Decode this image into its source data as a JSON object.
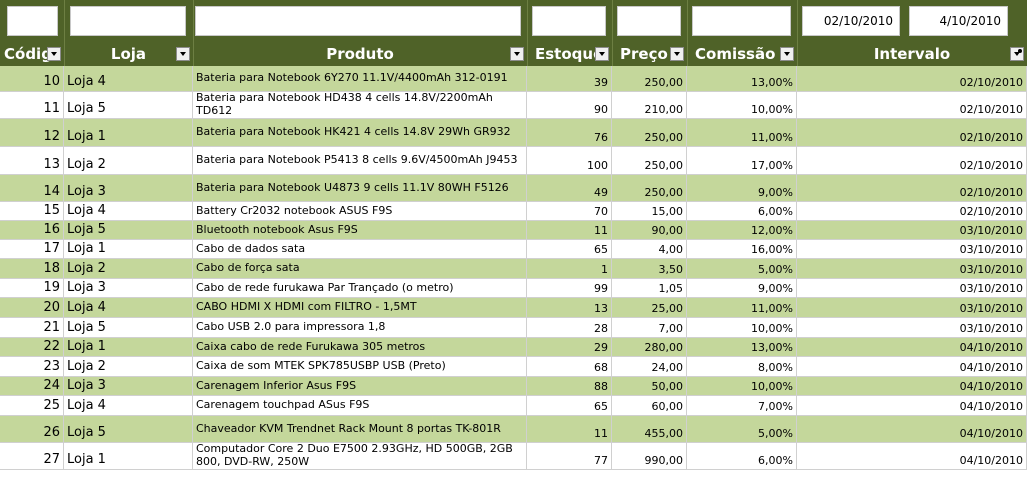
{
  "header": {
    "columns": [
      {
        "title": "Códig"
      },
      {
        "title": "Loja"
      },
      {
        "title": "Produto"
      },
      {
        "title": "Estoque"
      },
      {
        "title": "Preço"
      },
      {
        "title": "Comissão"
      },
      {
        "title": "Intervalo"
      }
    ],
    "filters": {
      "codigo": "",
      "loja": "",
      "produto": "",
      "estoque": "",
      "preco": "",
      "comissao": "",
      "date_from": "02/10/2010",
      "date_to": "4/10/2010"
    }
  },
  "rows": [
    {
      "code": "10",
      "store": "Loja 4",
      "product": "Bateria para Notebook 6Y270 11.1V/4400mAh 312-0191",
      "stock": "39",
      "price": "250,00",
      "commission": "13,00%",
      "date": "02/10/2010"
    },
    {
      "code": "11",
      "store": "Loja 5",
      "product": "Bateria para Notebook HD438 4 cells 14.8V/2200mAh TD612",
      "stock": "90",
      "price": "210,00",
      "commission": "10,00%",
      "date": "02/10/2010"
    },
    {
      "code": "12",
      "store": "Loja 1",
      "product": "Bateria para Notebook HK421 4 cells 14.8V 29Wh GR932",
      "stock": "76",
      "price": "250,00",
      "commission": "11,00%",
      "date": "02/10/2010"
    },
    {
      "code": "13",
      "store": "Loja 2",
      "product": "Bateria para Notebook P5413 8 cells 9.6V/4500mAh J9453",
      "stock": "100",
      "price": "250,00",
      "commission": "17,00%",
      "date": "02/10/2010"
    },
    {
      "code": "14",
      "store": "Loja 3",
      "product": "Bateria para Notebook U4873 9 cells 11.1V 80WH F5126",
      "stock": "49",
      "price": "250,00",
      "commission": "9,00%",
      "date": "02/10/2010"
    },
    {
      "code": "15",
      "store": "Loja 4",
      "product": "Battery Cr2032 notebook ASUS F9S",
      "stock": "70",
      "price": "15,00",
      "commission": "6,00%",
      "date": "02/10/2010"
    },
    {
      "code": "16",
      "store": "Loja 5",
      "product": "Bluetooth notebook Asus F9S",
      "stock": "11",
      "price": "90,00",
      "commission": "12,00%",
      "date": "03/10/2010"
    },
    {
      "code": "17",
      "store": "Loja 1",
      "product": "Cabo de dados sata",
      "stock": "65",
      "price": "4,00",
      "commission": "16,00%",
      "date": "03/10/2010"
    },
    {
      "code": "18",
      "store": "Loja 2",
      "product": "Cabo de força sata",
      "stock": "1",
      "price": "3,50",
      "commission": "5,00%",
      "date": "03/10/2010"
    },
    {
      "code": "19",
      "store": "Loja 3",
      "product": "Cabo de rede furukawa Par Trançado (o metro)",
      "stock": "99",
      "price": "1,05",
      "commission": "9,00%",
      "date": "03/10/2010"
    },
    {
      "code": "20",
      "store": "Loja 4",
      "product": "CABO HDMI X HDMI com FILTRO - 1,5MT",
      "stock": "13",
      "price": "25,00",
      "commission": "11,00%",
      "date": "03/10/2010"
    },
    {
      "code": "21",
      "store": "Loja 5",
      "product": "Cabo USB 2.0 para impressora 1,8",
      "stock": "28",
      "price": "7,00",
      "commission": "10,00%",
      "date": "03/10/2010"
    },
    {
      "code": "22",
      "store": "Loja 1",
      "product": "Caixa cabo de rede Furukawa 305 metros",
      "stock": "29",
      "price": "280,00",
      "commission": "13,00%",
      "date": "04/10/2010"
    },
    {
      "code": "23",
      "store": "Loja 2",
      "product": "Caixa de som MTEK SPK785USBP USB (Preto)",
      "stock": "68",
      "price": "24,00",
      "commission": "8,00%",
      "date": "04/10/2010"
    },
    {
      "code": "24",
      "store": "Loja 3",
      "product": "Carenagem Inferior Asus F9S",
      "stock": "88",
      "price": "50,00",
      "commission": "10,00%",
      "date": "04/10/2010"
    },
    {
      "code": "25",
      "store": "Loja 4",
      "product": "Carenagem touchpad ASus F9S",
      "stock": "65",
      "price": "60,00",
      "commission": "7,00%",
      "date": "04/10/2010"
    },
    {
      "code": "26",
      "store": "Loja 5",
      "product": "Chaveador KVM Trendnet Rack Mount 8 portas TK-801R",
      "stock": "11",
      "price": "455,00",
      "commission": "5,00%",
      "date": "04/10/2010"
    },
    {
      "code": "27",
      "store": "Loja 1",
      "product": "Computador Core 2 Duo E7500 2.93GHz, HD 500GB, 2GB 800, DVD-RW, 250W",
      "stock": "77",
      "price": "990,00",
      "commission": "6,00%",
      "date": "04/10/2010"
    }
  ],
  "colors": {
    "header_bg": "#4f6228",
    "row_green": "#c4d79b",
    "row_white": "#ffffff"
  }
}
